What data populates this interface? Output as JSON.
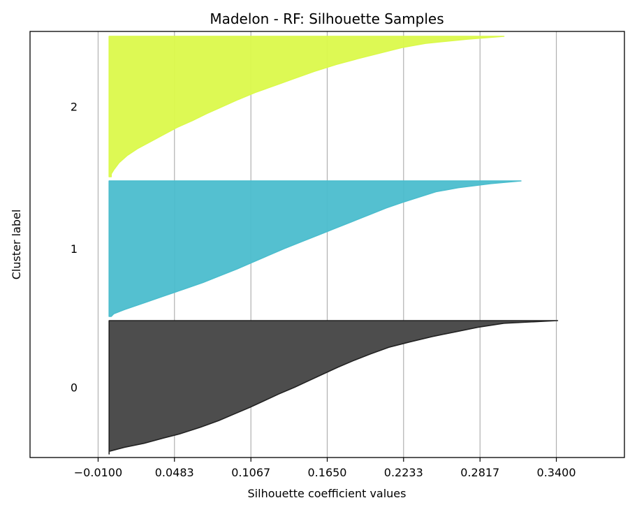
{
  "chart_data": {
    "type": "area",
    "title": "Madelon - RF: Silhouette Samples",
    "xlabel": "Silhouette coefficient values",
    "ylabel": "Cluster label",
    "xticks": [
      "−0.0100",
      "0.0483",
      "0.1067",
      "0.1650",
      "0.2233",
      "0.2817",
      "0.3400"
    ],
    "tick_values": [
      -0.01,
      0.0483,
      0.1067,
      0.165,
      0.2233,
      0.2817,
      0.34
    ],
    "xlim": [
      -0.062,
      0.392
    ],
    "grid": "vertical",
    "clusters": [
      {
        "label": "0",
        "color": "#4d4d4d",
        "sample_fraction": [
          0,
          0.02,
          0.05,
          0.08,
          0.12,
          0.16,
          0.2,
          0.25,
          0.3,
          0.35,
          0.4,
          0.45,
          0.5,
          0.55,
          0.6,
          0.65,
          0.7,
          0.75,
          0.8,
          0.85,
          0.88,
          0.92,
          0.95,
          0.98,
          1
        ],
        "values": [
          0.341,
          0.3,
          0.28,
          0.265,
          0.245,
          0.228,
          0.212,
          0.198,
          0.185,
          0.173,
          0.162,
          0.151,
          0.14,
          0.128,
          0.117,
          0.106,
          0.094,
          0.082,
          0.068,
          0.052,
          0.04,
          0.025,
          0.01,
          -0.002,
          -0.002
        ]
      },
      {
        "label": "1",
        "color": "#4bbdcd",
        "sample_fraction": [
          0,
          0.02,
          0.05,
          0.08,
          0.12,
          0.16,
          0.2,
          0.25,
          0.3,
          0.35,
          0.4,
          0.45,
          0.5,
          0.55,
          0.6,
          0.65,
          0.7,
          0.75,
          0.8,
          0.85,
          0.9,
          0.95,
          0.98,
          1
        ],
        "values": [
          0.313,
          0.29,
          0.265,
          0.248,
          0.235,
          0.222,
          0.21,
          0.197,
          0.184,
          0.171,
          0.158,
          0.145,
          0.132,
          0.12,
          0.108,
          0.096,
          0.083,
          0.07,
          0.055,
          0.04,
          0.025,
          0.01,
          0.002,
          0
        ]
      },
      {
        "label": "2",
        "color": "#dbf94b",
        "sample_fraction": [
          0,
          0.02,
          0.05,
          0.08,
          0.12,
          0.16,
          0.2,
          0.25,
          0.3,
          0.35,
          0.4,
          0.45,
          0.5,
          0.55,
          0.6,
          0.65,
          0.7,
          0.75,
          0.8,
          0.85,
          0.9,
          0.95,
          0.98,
          1
        ],
        "values": [
          0.3,
          0.272,
          0.24,
          0.222,
          0.205,
          0.188,
          0.172,
          0.155,
          0.14,
          0.125,
          0.11,
          0.097,
          0.085,
          0.073,
          0.062,
          0.05,
          0.04,
          0.03,
          0.02,
          0.012,
          0.006,
          0.002,
          0,
          0
        ]
      }
    ]
  }
}
